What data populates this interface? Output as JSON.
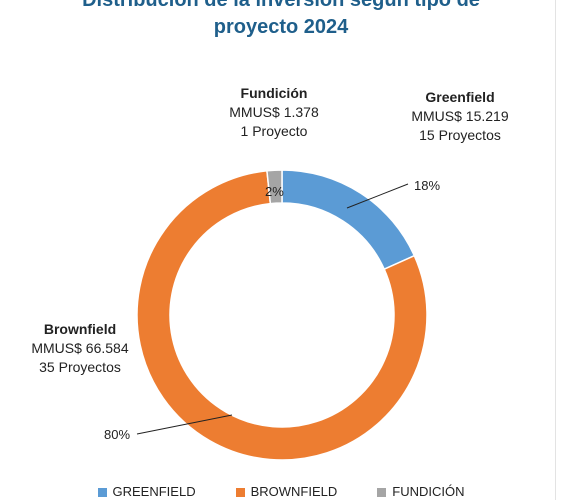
{
  "chart_data": {
    "type": "pie",
    "donut": true,
    "title_line1": "Distribución de la inversión según tipo de",
    "title_line2": "proyecto 2024",
    "categories": [
      "GREENFIELD",
      "BROWNFIELD",
      "FUNDICIÓN"
    ],
    "values": [
      15.219,
      66.584,
      1.378
    ],
    "percent_labels": [
      "18%",
      "80%",
      "2%"
    ],
    "colors": [
      "#5b9bd5",
      "#ed7d31",
      "#a5a5a5"
    ],
    "annotations": [
      {
        "name": "Greenfield",
        "amount": "MMUS$ 15.219",
        "projects": "15 Proyectos"
      },
      {
        "name": "Brownfield",
        "amount": "MMUS$ 66.584",
        "projects": "35 Proyectos"
      },
      {
        "name": "Fundición",
        "amount": "MMUS$ 1.378",
        "projects": "1 Proyecto"
      }
    ],
    "legend_position": "bottom"
  }
}
